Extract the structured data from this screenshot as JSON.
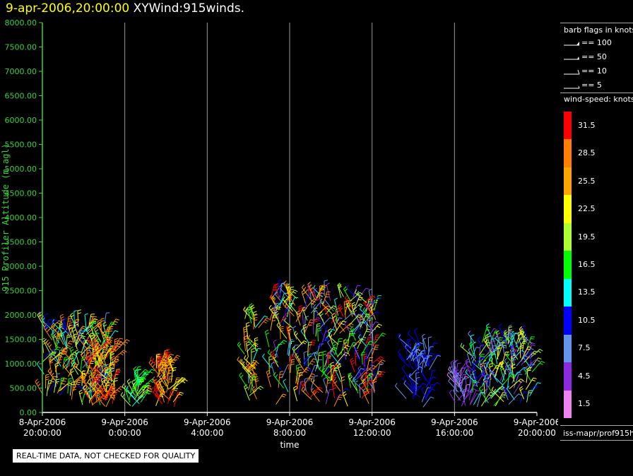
{
  "header": {
    "date_label": "9-apr-2006,20:00:00",
    "product_label": "XYWind:915winds."
  },
  "legend": {
    "barb_title": "barb flags in knots",
    "barb_items": [
      "== 100",
      "== 50",
      "== 10",
      "== 5"
    ],
    "speed_title": "wind-speed: knots",
    "speed_colors": [
      "#ff0000",
      "#ff7f00",
      "#ffa500",
      "#ffff00",
      "#adff2f",
      "#00ff00",
      "#00ffff",
      "#0000ff",
      "#6495ed",
      "#8a2be2",
      "#ee82ee"
    ],
    "speed_labels": [
      "31.5",
      "28.5",
      "25.5",
      "22.5",
      "19.5",
      "16.5",
      "13.5",
      "10.5",
      "7.5",
      "4.5",
      "1.5"
    ],
    "source": "iss-mapr/prof915h"
  },
  "footer": {
    "qc_note": "REAL-TIME DATA, NOT CHECKED FOR QUALITY"
  },
  "chart_data": {
    "type": "scatter",
    "plot_kind": "wind barbs (time-height)",
    "ylabel": "915 Profiler Altitude (m agl)",
    "xlabel": "time",
    "ylim": [
      0,
      8000
    ],
    "y_ticks": [
      "0.00",
      "500.00",
      "1000.00",
      "1500.00",
      "2000.00",
      "2500.00",
      "3000.00",
      "3500.00",
      "4000.00",
      "4500.00",
      "5000.00",
      "5500.00",
      "6000.00",
      "6500.00",
      "7000.00",
      "7500.00",
      "8000.00"
    ],
    "x_ticks": [
      {
        "date": "8-Apr-2006",
        "time": "20:00:00"
      },
      {
        "date": "9-Apr-2006",
        "time": "0:00:00"
      },
      {
        "date": "9-Apr-2006",
        "time": "4:00:00"
      },
      {
        "date": "9-Apr-2006",
        "time": "8:00:00"
      },
      {
        "date": "9-Apr-2006",
        "time": "12:00:00"
      },
      {
        "date": "9-Apr-2006",
        "time": "16:00:00"
      },
      {
        "date": "9-Apr-2006",
        "time": "20:00:00"
      }
    ],
    "xlim_hours": [
      0,
      24
    ],
    "vertical_grid_hours": [
      4,
      8,
      12,
      16,
      20
    ],
    "wind_clusters": [
      {
        "t_start": 0.0,
        "t_end": 3.2,
        "alt_max": 1800,
        "speed_min": 8,
        "speed_max": 30
      },
      {
        "t_start": 2.2,
        "t_end": 3.6,
        "alt_max": 1300,
        "speed_min": 20,
        "speed_max": 33
      },
      {
        "t_start": 4.2,
        "t_end": 4.8,
        "alt_max": 700,
        "speed_min": 12,
        "speed_max": 20
      },
      {
        "t_start": 5.5,
        "t_end": 6.4,
        "alt_max": 1000,
        "speed_min": 22,
        "speed_max": 33
      },
      {
        "t_start": 9.8,
        "t_end": 10.5,
        "alt_max": 2000,
        "speed_min": 12,
        "speed_max": 30
      },
      {
        "t_start": 11.0,
        "t_end": 16.2,
        "alt_max": 2400,
        "speed_min": 4,
        "speed_max": 33
      },
      {
        "t_start": 17.6,
        "t_end": 18.8,
        "alt_max": 1400,
        "speed_min": 6,
        "speed_max": 12
      },
      {
        "t_start": 20.0,
        "t_end": 20.8,
        "alt_max": 800,
        "speed_min": 2,
        "speed_max": 9
      },
      {
        "t_start": 20.8,
        "t_end": 23.8,
        "alt_max": 1500,
        "speed_min": 3,
        "speed_max": 24
      }
    ]
  }
}
